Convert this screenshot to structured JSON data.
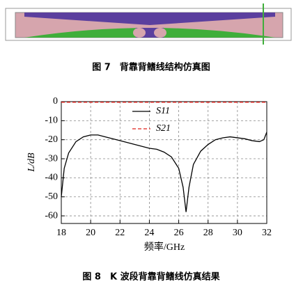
{
  "figure7": {
    "caption": "图 7　背靠背鳍线结构仿真图"
  },
  "figure8": {
    "caption": "图 8　K 波段背靠背鳍线仿真结果"
  },
  "chart_data": {
    "type": "line",
    "xlabel": "频率/GHz",
    "ylabel": "L/dB",
    "xlim": [
      18,
      32
    ],
    "xticks": [
      18,
      20,
      22,
      24,
      26,
      28,
      30,
      32
    ],
    "ylim": [
      -64,
      0
    ],
    "yticks": [
      0,
      -10,
      -20,
      -30,
      -40,
      -50,
      -60
    ],
    "grid": true,
    "series": [
      {
        "name": "S11",
        "color": "#000000",
        "dash": false,
        "x": [
          18.0,
          18.2,
          18.5,
          19,
          19.5,
          20,
          20.5,
          21,
          22,
          23,
          24,
          24.5,
          25,
          25.5,
          26,
          26.3,
          26.5,
          26.7,
          27,
          27.5,
          28,
          28.5,
          29,
          29.5,
          30,
          30.5,
          31,
          31.5,
          31.8,
          32
        ],
        "values": [
          -50,
          -35,
          -27,
          -21,
          -18.5,
          -17.5,
          -17.5,
          -18.5,
          -20.5,
          -22.5,
          -24.5,
          -25,
          -26.5,
          -29,
          -35,
          -45,
          -58,
          -45,
          -33,
          -26,
          -22.5,
          -20,
          -19,
          -18.5,
          -19,
          -19.5,
          -20.5,
          -21,
          -20,
          -16
        ]
      },
      {
        "name": "S21",
        "color": "#e0201b",
        "dash": true,
        "x": [
          18,
          25,
          32
        ],
        "values": [
          -0.3,
          -0.3,
          -0.3
        ]
      }
    ]
  }
}
